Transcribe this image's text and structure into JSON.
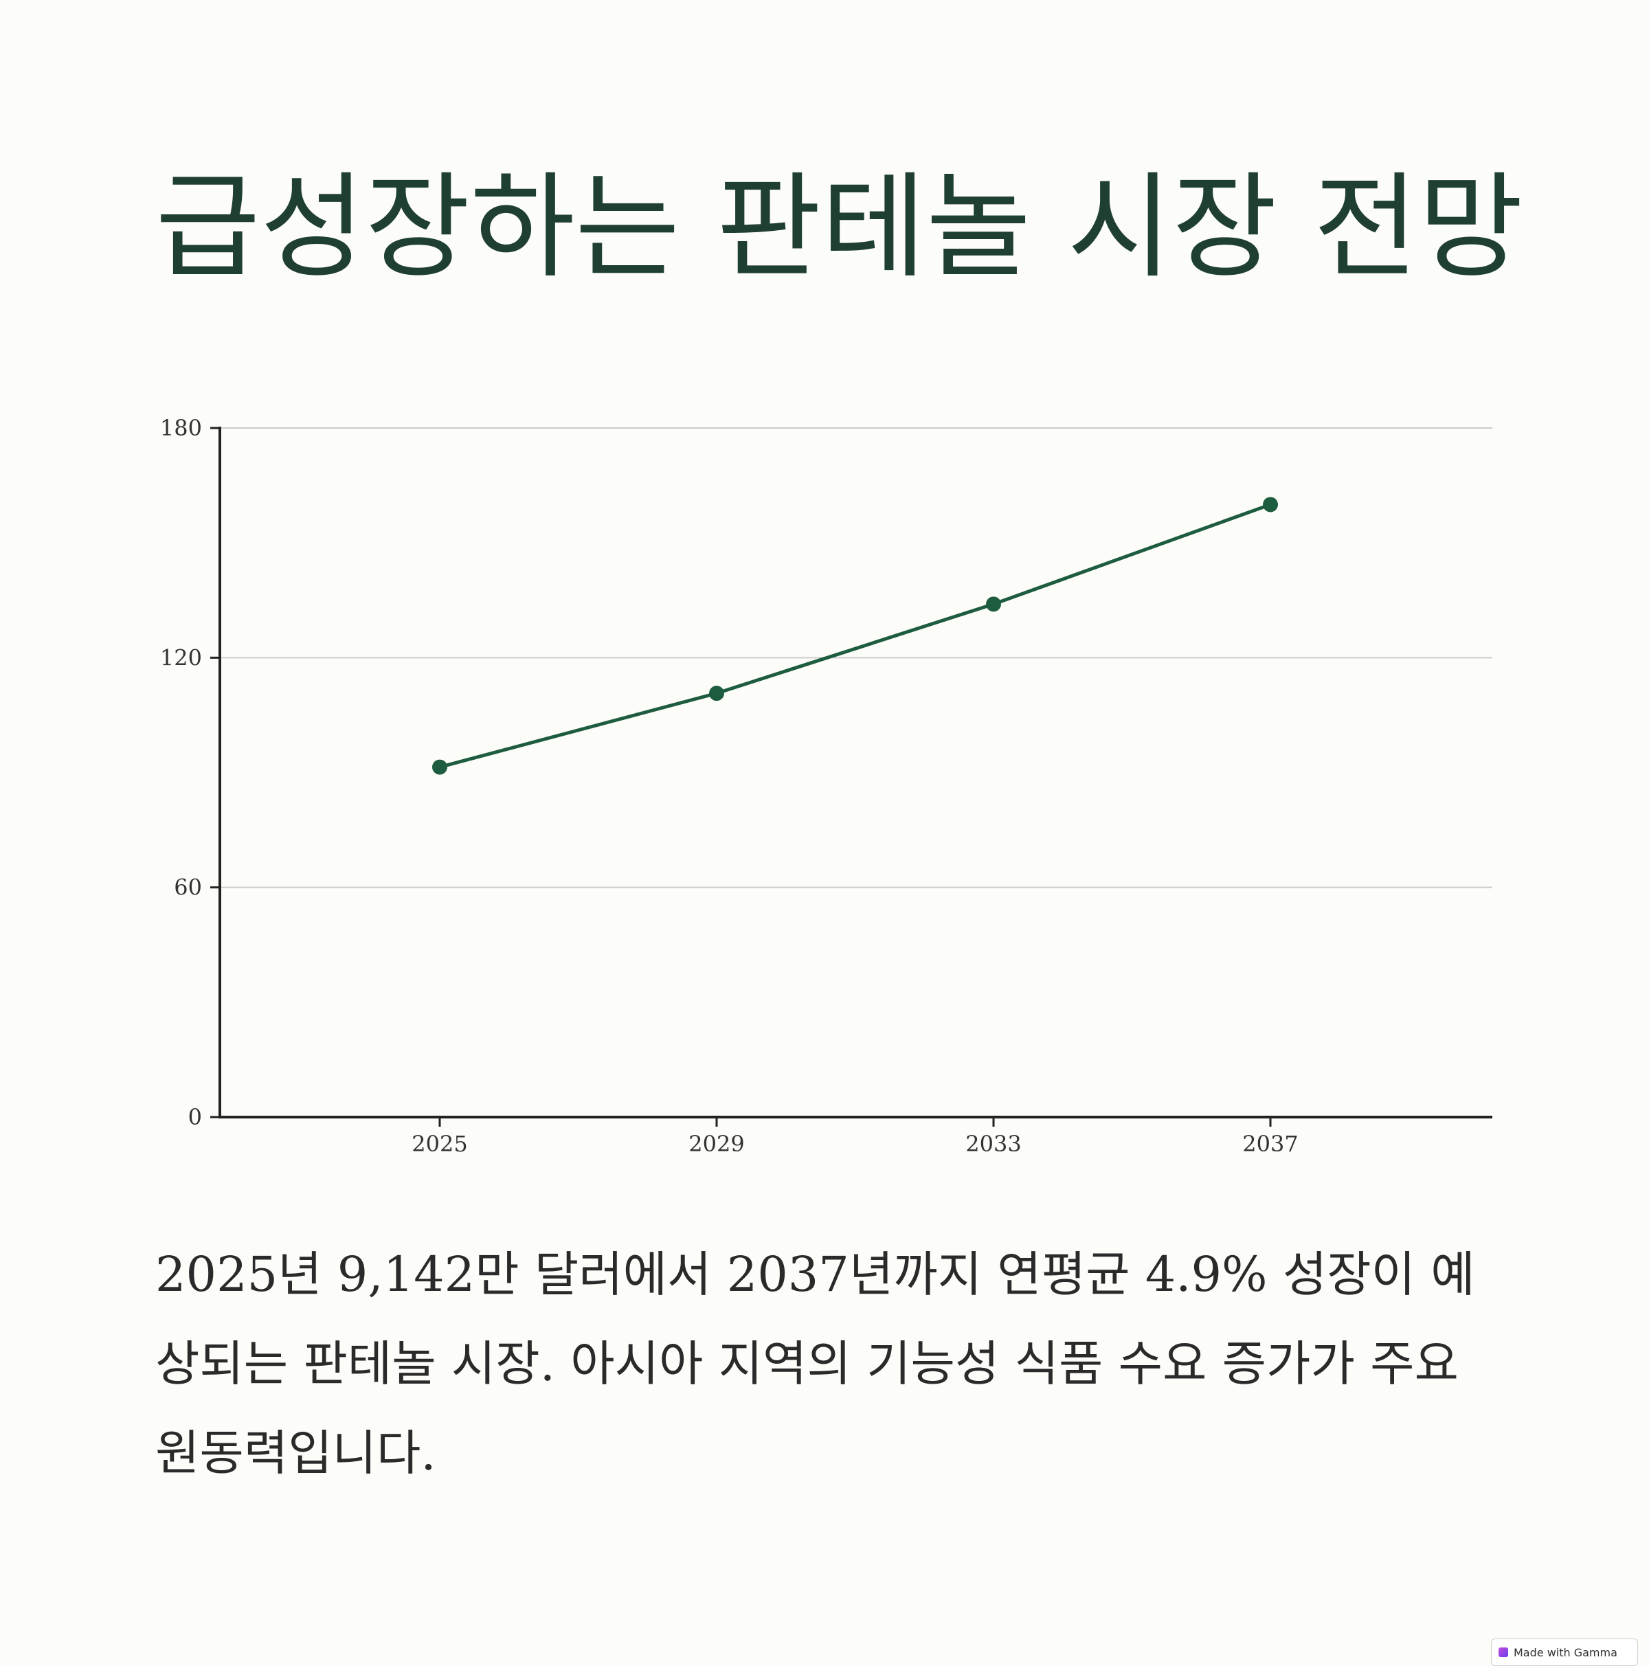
{
  "title": "급성장하는 판테놀 시장 전망",
  "description": "2025년 9,142만 달러에서 2037년까지 연평균 4.9% 성장이 예상되는 판테놀 시장. 아시아 지역의 기능성 식품 수요 증가가 주요 원동력입니다.",
  "badge": {
    "label": "Made with Gamma",
    "icon": "gamma-logo-icon"
  },
  "colors": {
    "title": "#1f3f33",
    "line": "#1e5c3f",
    "axis": "#222222",
    "grid": "#cccccc",
    "background": "#fcfcf9"
  },
  "chart_data": {
    "type": "line",
    "x": [
      "2025",
      "2029",
      "2033",
      "2037"
    ],
    "series": [
      {
        "values": [
          91.42,
          110.7,
          134,
          160
        ]
      }
    ],
    "ylim": [
      0,
      180
    ],
    "yticks": [
      "0",
      "60",
      "120",
      "180"
    ],
    "grid": true,
    "xlabel": "",
    "ylabel": ""
  }
}
